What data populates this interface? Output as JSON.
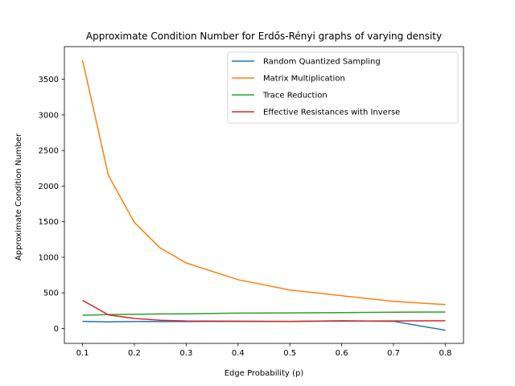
{
  "chart_data": {
    "type": "line",
    "title": "Approximate Condition Number for Erdős-Rényi graphs of varying density",
    "xlabel": "Edge Probability (p)",
    "ylabel": "Approximate Condition Number",
    "xlim": [
      0.065,
      0.835
    ],
    "ylim": [
      -210,
      3960
    ],
    "xticks": [
      "0.1",
      "0.2",
      "0.3",
      "0.4",
      "0.5",
      "0.6",
      "0.7",
      "0.8"
    ],
    "yticks": [
      "0",
      "500",
      "1000",
      "1500",
      "2000",
      "2500",
      "3000",
      "3500"
    ],
    "grid": false,
    "legend_position": "top-right",
    "x": [
      0.1,
      0.15,
      0.2,
      0.25,
      0.3,
      0.4,
      0.5,
      0.6,
      0.7,
      0.8
    ],
    "series": [
      {
        "name": "Random Quantized Sampling",
        "color": "#1f77b4",
        "values": [
          100,
          92,
          98,
          97,
          97,
          98,
          98,
          108,
          100,
          -25
        ]
      },
      {
        "name": "Matrix Multiplication",
        "color": "#ff7f0e",
        "values": [
          3770,
          2150,
          1490,
          1130,
          920,
          685,
          540,
          460,
          380,
          335
        ]
      },
      {
        "name": "Trace Reduction",
        "color": "#2ca02c",
        "values": [
          185,
          195,
          198,
          204,
          206,
          215,
          218,
          222,
          228,
          230
        ]
      },
      {
        "name": "Effective Resistances with Inverse",
        "color": "#d62728",
        "values": [
          395,
          190,
          140,
          115,
          105,
          102,
          100,
          103,
          105,
          108
        ]
      }
    ]
  }
}
